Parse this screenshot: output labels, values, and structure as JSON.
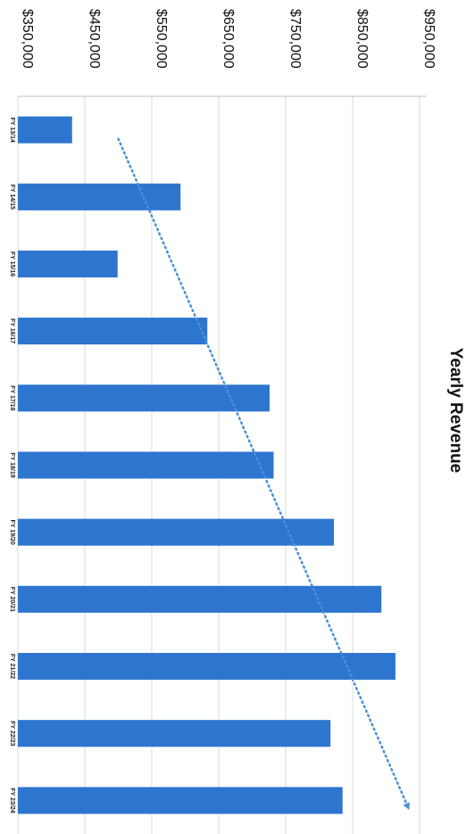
{
  "chart_data": {
    "type": "bar",
    "title": "Yearly Revenue",
    "categories": [
      "FY 13/14",
      "FY 14/15",
      "FY 15/16",
      "FY 16/17",
      "FY 17/18",
      "FY 18/19",
      "FY 19/20",
      "FY 20/21",
      "FY 21/22",
      "FY 22/23",
      "FY 23/24"
    ],
    "values": [
      431000,
      593000,
      499000,
      633000,
      726000,
      732000,
      822000,
      893000,
      914000,
      817000,
      835000
    ],
    "tick_labels": [
      "$350,000",
      "$450,000",
      "$550,000",
      "$650,000",
      "$750,000",
      "$850,000",
      "$950,000"
    ],
    "ticks": [
      350000,
      450000,
      550000,
      650000,
      750000,
      850000,
      950000
    ],
    "ylim": [
      350000,
      950000
    ],
    "trendline": {
      "style": "dotted-arrow",
      "start": 500000,
      "end": 933000
    },
    "grid": true,
    "orientation": "rotated-90-clockwise",
    "colors": {
      "bar": "#2e75cf",
      "trend": "#4a90d9",
      "grid": "#d9d9d9"
    }
  }
}
